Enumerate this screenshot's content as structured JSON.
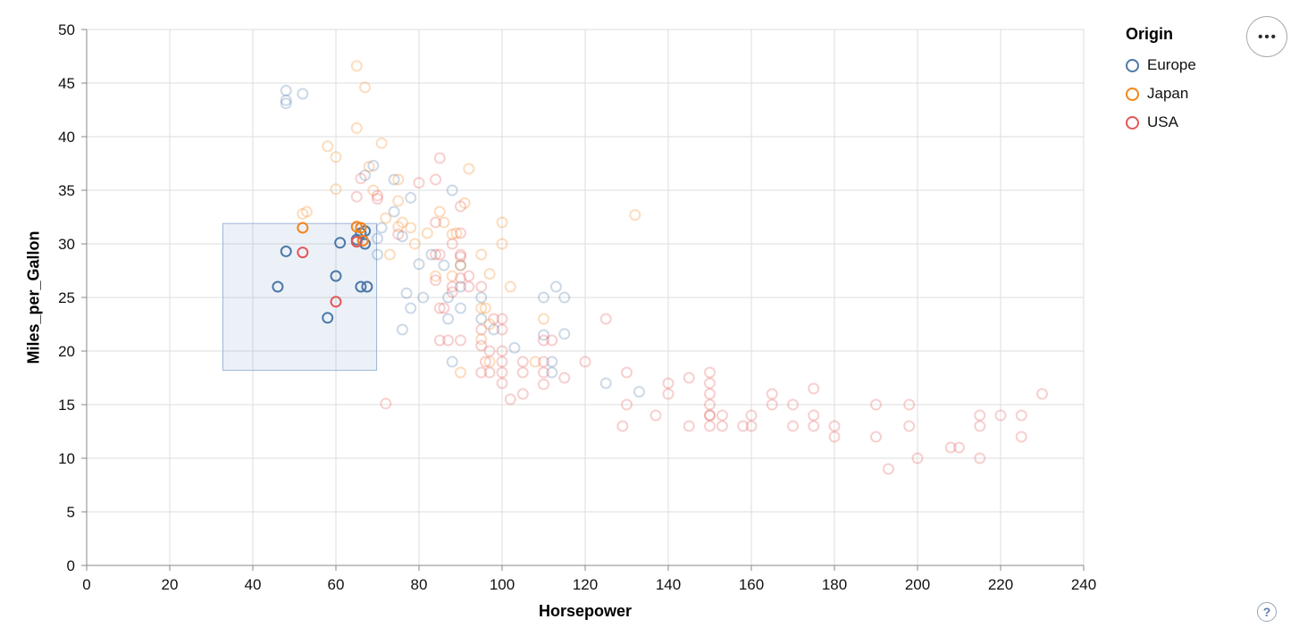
{
  "legend": {
    "title": "Origin",
    "entries": [
      {
        "label": "Europe",
        "color": "#4c78a8"
      },
      {
        "label": "Japan",
        "color": "#f58518"
      },
      {
        "label": "USA",
        "color": "#e45756"
      }
    ]
  },
  "controls": {
    "menu_icon": "•••",
    "help_icon": "?"
  },
  "chart_data": {
    "type": "scatter",
    "title": "",
    "xlabel": "Horsepower",
    "ylabel": "Miles_per_Gallon",
    "xlim": [
      0,
      240
    ],
    "ylim": [
      0,
      50
    ],
    "x_ticks": [
      0,
      20,
      40,
      60,
      80,
      100,
      120,
      140,
      160,
      180,
      200,
      220,
      240
    ],
    "y_ticks": [
      0,
      5,
      10,
      15,
      20,
      25,
      30,
      35,
      40,
      45,
      50
    ],
    "grid": true,
    "legend_position": "top-right",
    "point_shape": "open-circle",
    "point_radius": 5.5,
    "stroke_width": 2,
    "selected_opacity": 1,
    "unselected_opacity": 0.28,
    "grid_color": "#dddddd",
    "axis_color": "#888888",
    "brush": {
      "x": [
        32.8,
        69.8
      ],
      "y": [
        18.2,
        31.9
      ],
      "fill": "#6e96c8",
      "fill_opacity": 0.13,
      "stroke": "#9db7d8"
    },
    "series": [
      {
        "name": "Europe",
        "color": "#4c78a8",
        "points": [
          [
            46,
            26
          ],
          [
            48,
            29.3
          ],
          [
            58,
            23.1
          ],
          [
            60,
            27
          ],
          [
            61,
            30.1
          ],
          [
            65,
            30.4
          ],
          [
            66,
            26
          ],
          [
            67.5,
            26
          ],
          [
            66,
            31
          ],
          [
            67,
            31.2
          ],
          [
            67,
            30
          ],
          [
            48,
            43.1
          ],
          [
            48,
            43.4
          ],
          [
            48,
            44.3
          ],
          [
            52,
            44
          ],
          [
            67,
            36.4
          ],
          [
            69,
            37.3
          ],
          [
            70,
            29
          ],
          [
            70,
            30.5
          ],
          [
            71,
            31.5
          ],
          [
            74,
            36
          ],
          [
            74,
            33
          ],
          [
            76,
            30.7
          ],
          [
            76,
            22
          ],
          [
            77,
            25.4
          ],
          [
            78,
            34.3
          ],
          [
            78,
            24
          ],
          [
            80,
            28.1
          ],
          [
            81,
            25
          ],
          [
            83,
            29
          ],
          [
            86,
            28
          ],
          [
            87,
            25
          ],
          [
            87,
            23
          ],
          [
            88,
            19
          ],
          [
            88,
            35
          ],
          [
            90,
            24
          ],
          [
            90,
            26
          ],
          [
            90,
            28
          ],
          [
            95,
            25
          ],
          [
            95,
            23
          ],
          [
            98,
            22
          ],
          [
            103,
            20.3
          ],
          [
            110,
            21.5
          ],
          [
            110,
            25
          ],
          [
            112,
            18
          ],
          [
            112,
            19
          ],
          [
            113,
            26
          ],
          [
            115,
            25
          ],
          [
            115,
            21.6
          ],
          [
            125,
            17
          ],
          [
            133,
            16.2
          ]
        ]
      },
      {
        "name": "Japan",
        "color": "#f58518",
        "points": [
          [
            52,
            31.5
          ],
          [
            65,
            31.6
          ],
          [
            66,
            31.5
          ],
          [
            66.5,
            30.3
          ],
          [
            52,
            32.8
          ],
          [
            53,
            33
          ],
          [
            58,
            39.1
          ],
          [
            60,
            38.1
          ],
          [
            60,
            35.1
          ],
          [
            65,
            46.6
          ],
          [
            65,
            40.8
          ],
          [
            67,
            44.6
          ],
          [
            68,
            37.2
          ],
          [
            69,
            35
          ],
          [
            71,
            39.4
          ],
          [
            72,
            32.4
          ],
          [
            73,
            29
          ],
          [
            75,
            31.6
          ],
          [
            75,
            34
          ],
          [
            75,
            36
          ],
          [
            76,
            32
          ],
          [
            78,
            31.5
          ],
          [
            79,
            30
          ],
          [
            82,
            31
          ],
          [
            84,
            27
          ],
          [
            85,
            33
          ],
          [
            86,
            32
          ],
          [
            88,
            27
          ],
          [
            88,
            30.9
          ],
          [
            89,
            31
          ],
          [
            90,
            28
          ],
          [
            90,
            18
          ],
          [
            91,
            33.8
          ],
          [
            92,
            37
          ],
          [
            95,
            21.1
          ],
          [
            95,
            24
          ],
          [
            95,
            29
          ],
          [
            96,
            24
          ],
          [
            97,
            22.5
          ],
          [
            97,
            19
          ],
          [
            97,
            27.2
          ],
          [
            100,
            30
          ],
          [
            100,
            32
          ],
          [
            102,
            26
          ],
          [
            108,
            19
          ],
          [
            110,
            23
          ],
          [
            132,
            32.7
          ]
        ]
      },
      {
        "name": "USA",
        "color": "#e45756",
        "points": [
          [
            52,
            29.2
          ],
          [
            60,
            24.6
          ],
          [
            65,
            30.2
          ],
          [
            65,
            34.4
          ],
          [
            66,
            36.1
          ],
          [
            70,
            34.2
          ],
          [
            70,
            34.5
          ],
          [
            72,
            15.1
          ],
          [
            75,
            30.9
          ],
          [
            80,
            35.7
          ],
          [
            84,
            36
          ],
          [
            85,
            38
          ],
          [
            84,
            32
          ],
          [
            85,
            29
          ],
          [
            84,
            26.6
          ],
          [
            84,
            29
          ],
          [
            85,
            24
          ],
          [
            85,
            21
          ],
          [
            86,
            24
          ],
          [
            87,
            21
          ],
          [
            88,
            30
          ],
          [
            88,
            25.5
          ],
          [
            88,
            26
          ],
          [
            90,
            29
          ],
          [
            90,
            28.8
          ],
          [
            90,
            33.5
          ],
          [
            90,
            31
          ],
          [
            90,
            26.8
          ],
          [
            90,
            21
          ],
          [
            92,
            26
          ],
          [
            92,
            27
          ],
          [
            95,
            26
          ],
          [
            95,
            22
          ],
          [
            95,
            20.5
          ],
          [
            95,
            18
          ],
          [
            96,
            19
          ],
          [
            97,
            18
          ],
          [
            97,
            20
          ],
          [
            98,
            23
          ],
          [
            100,
            23
          ],
          [
            100,
            22
          ],
          [
            100,
            20
          ],
          [
            100,
            19
          ],
          [
            100,
            18
          ],
          [
            100,
            17
          ],
          [
            102,
            15.5
          ],
          [
            105,
            19
          ],
          [
            105,
            18
          ],
          [
            105,
            16
          ],
          [
            110,
            21
          ],
          [
            110,
            19
          ],
          [
            110,
            18
          ],
          [
            110,
            16.9
          ],
          [
            112,
            21
          ],
          [
            115,
            17.5
          ],
          [
            120,
            19
          ],
          [
            125,
            23
          ],
          [
            129,
            13
          ],
          [
            130,
            18
          ],
          [
            130,
            15
          ],
          [
            137,
            14
          ],
          [
            140,
            17
          ],
          [
            140,
            16
          ],
          [
            145,
            13
          ],
          [
            145,
            17.5
          ],
          [
            150,
            18
          ],
          [
            150,
            17
          ],
          [
            150,
            16
          ],
          [
            150,
            15
          ],
          [
            150,
            14
          ],
          [
            150,
            14
          ],
          [
            150,
            13
          ],
          [
            153,
            14
          ],
          [
            153,
            13
          ],
          [
            158,
            13
          ],
          [
            160,
            14
          ],
          [
            160,
            13
          ],
          [
            165,
            15
          ],
          [
            165,
            16
          ],
          [
            170,
            15
          ],
          [
            170,
            13
          ],
          [
            175,
            16.5
          ],
          [
            175,
            14
          ],
          [
            175,
            13
          ],
          [
            180,
            13
          ],
          [
            180,
            12
          ],
          [
            190,
            15
          ],
          [
            190,
            12
          ],
          [
            193,
            9
          ],
          [
            198,
            15
          ],
          [
            198,
            13
          ],
          [
            200,
            10
          ],
          [
            208,
            11
          ],
          [
            210,
            11
          ],
          [
            215,
            14
          ],
          [
            215,
            13
          ],
          [
            215,
            10
          ],
          [
            220,
            14
          ],
          [
            225,
            14
          ],
          [
            225,
            12
          ],
          [
            230,
            16
          ]
        ]
      }
    ]
  }
}
